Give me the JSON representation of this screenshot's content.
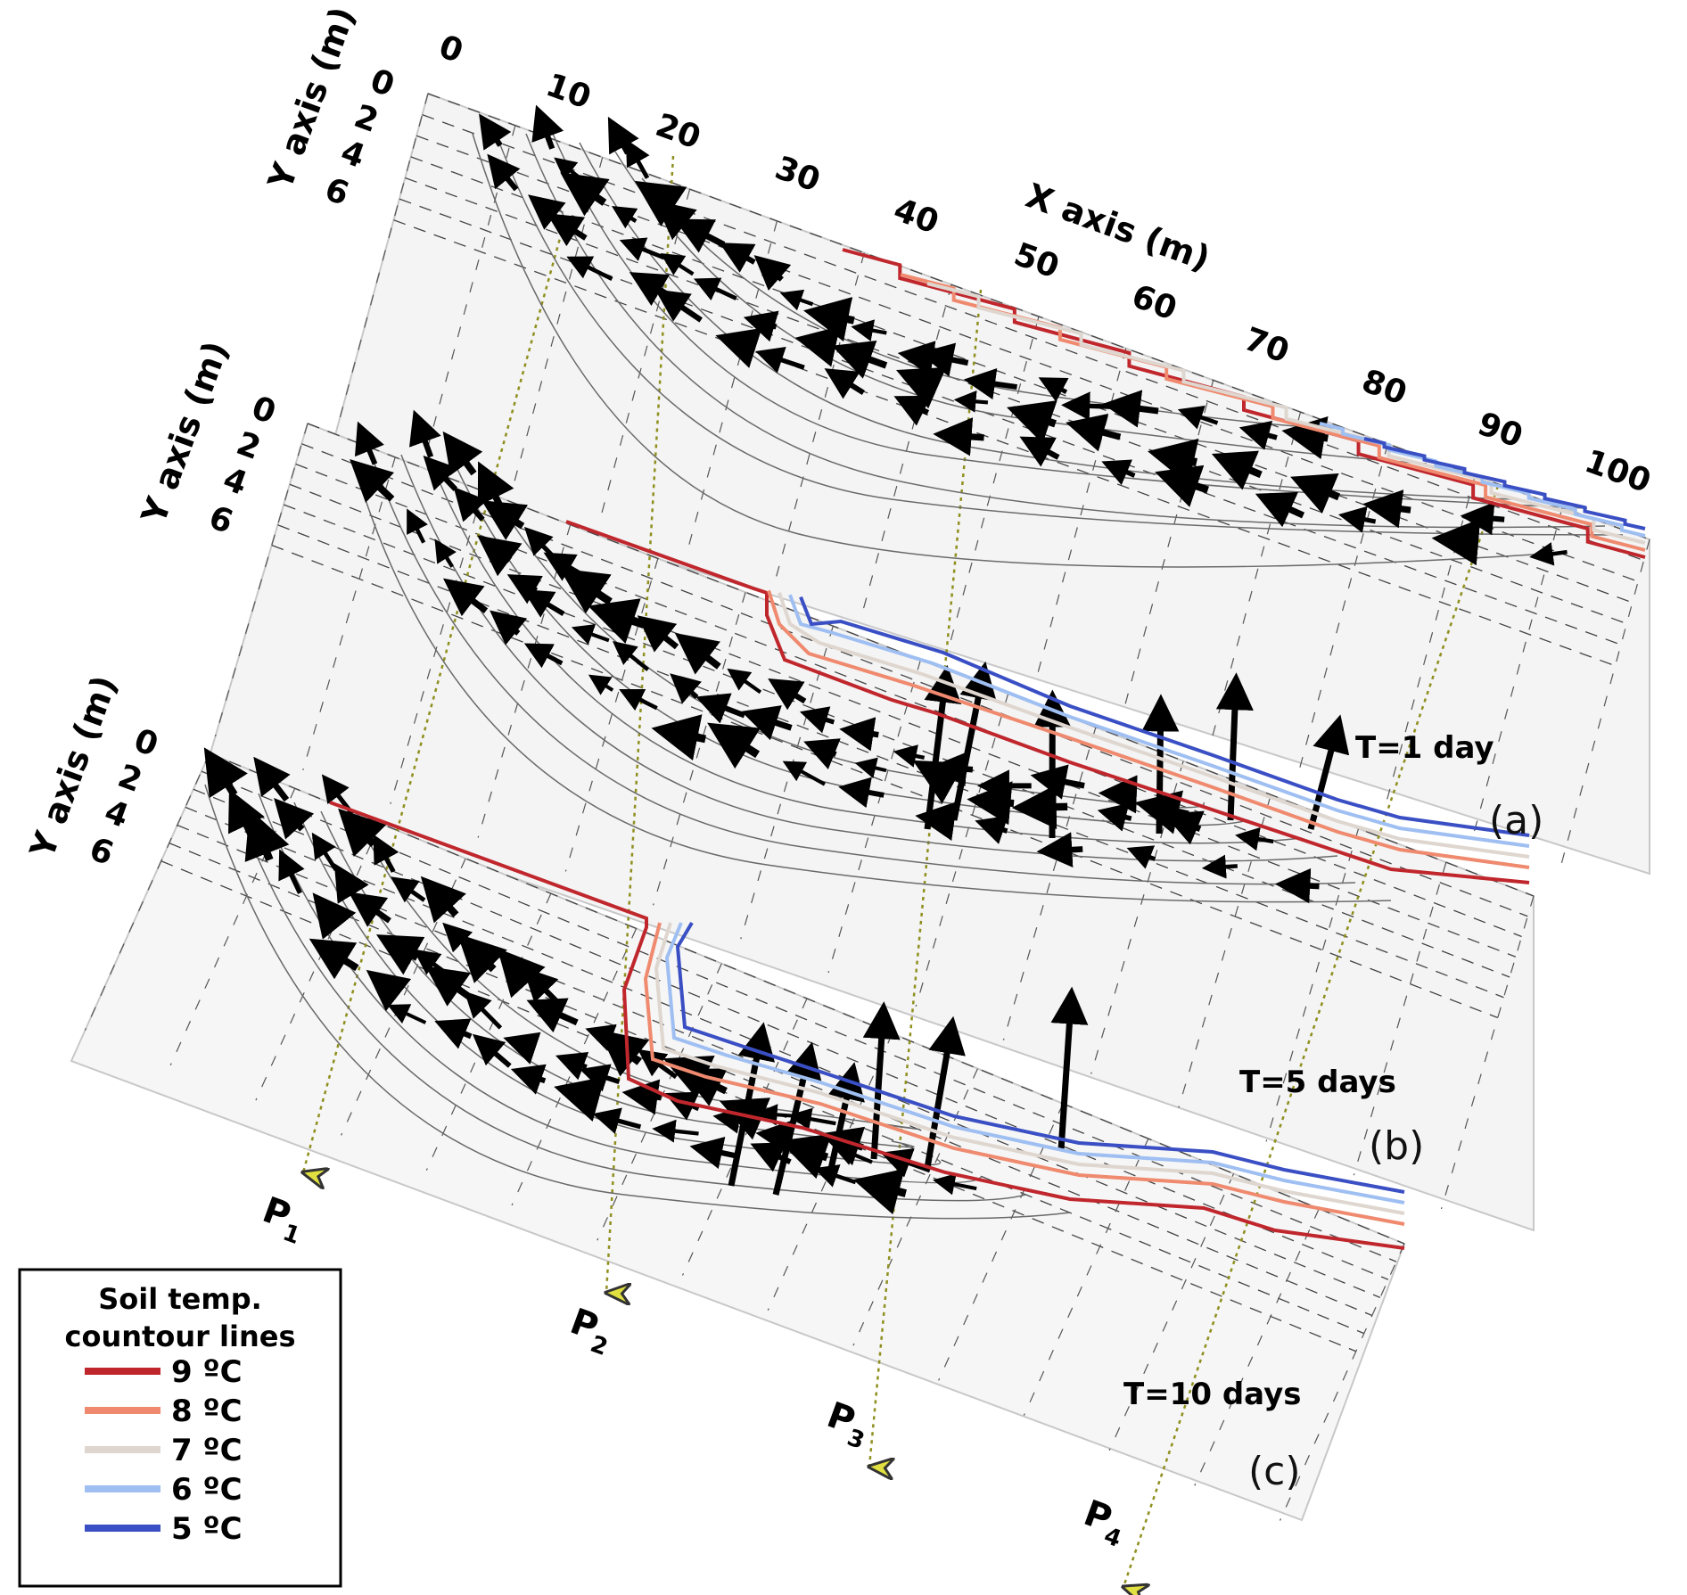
{
  "x_axis": {
    "title": "X axis (m)",
    "ticks": [
      "0",
      "10",
      "20",
      "30",
      "40",
      "50",
      "60",
      "70",
      "80",
      "90",
      "100"
    ]
  },
  "y_axis": {
    "title": "Y axis (m)",
    "ticks": [
      "0",
      "2",
      "4",
      "6"
    ]
  },
  "panels": [
    {
      "time_label": "T=1 day",
      "tag": "(a)"
    },
    {
      "time_label": "T=5 days",
      "tag": "(b)"
    },
    {
      "time_label": "T=10 days",
      "tag": "(c)"
    }
  ],
  "profiles": [
    {
      "label": "P",
      "sub": "1"
    },
    {
      "label": "P",
      "sub": "2"
    },
    {
      "label": "P",
      "sub": "3"
    },
    {
      "label": "P",
      "sub": "4"
    }
  ],
  "legend": {
    "title_line1": "Soil temp.",
    "title_line2": "countour lines",
    "items": [
      {
        "label": "9 ºC",
        "color": "#c0272d"
      },
      {
        "label": "8 ºC",
        "color": "#ef8a6f"
      },
      {
        "label": "7 ºC",
        "color": "#ded6cf"
      },
      {
        "label": "6 ºC",
        "color": "#9fbff2"
      },
      {
        "label": "5 ºC",
        "color": "#3a4fc4"
      }
    ]
  },
  "colors": {
    "contour_9": "#c0272d",
    "contour_8": "#ef8a6f",
    "contour_7": "#ded6cf",
    "contour_6": "#9fbff2",
    "contour_5": "#3a4fc4",
    "profile_line": "#8f8f1f",
    "vectors": "#000000",
    "panel_fill": "#f5f5f5"
  }
}
